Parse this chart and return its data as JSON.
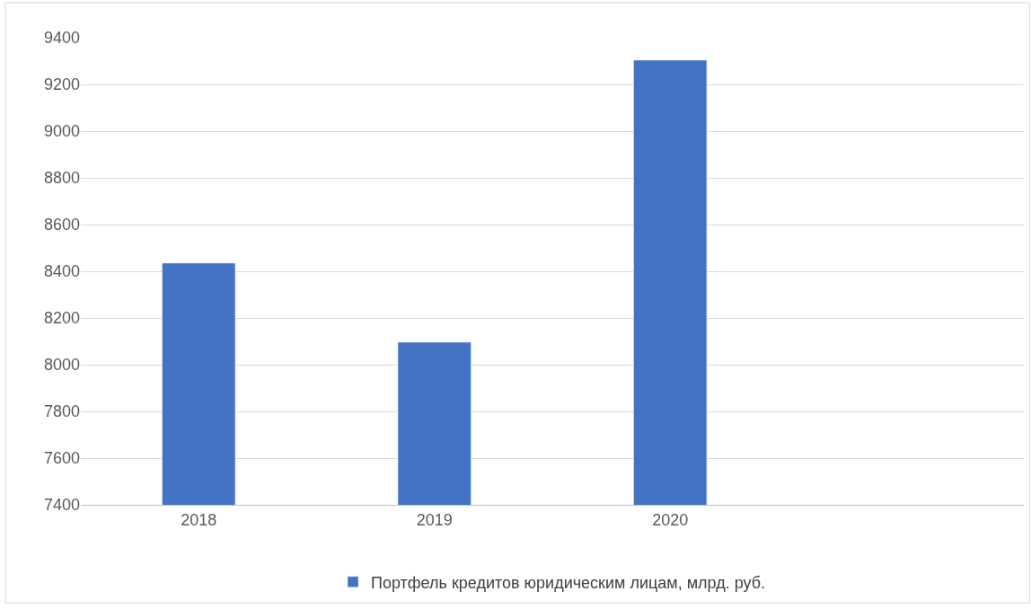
{
  "chart_data": {
    "type": "bar",
    "categories": [
      "2018",
      "2019",
      "2020",
      null
    ],
    "series": [
      {
        "name": "Портфель кредитов юридическим лицам, млрд. руб.",
        "color": "#4472c4",
        "values": [
          8435,
          8096,
          9304,
          null
        ]
      }
    ],
    "ylim": [
      7400,
      9400
    ],
    "yticks": [
      7400,
      7600,
      7800,
      8000,
      8200,
      8400,
      8600,
      8800,
      9000,
      9200,
      9400
    ],
    "grid": "y",
    "legend": "bottom"
  }
}
